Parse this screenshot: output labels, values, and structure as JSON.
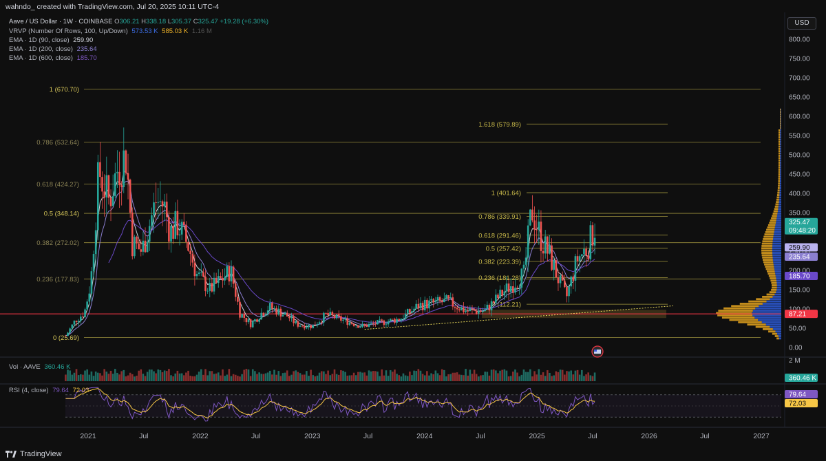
{
  "header": {
    "credit": "wahndo_ created with TradingView.com, Jul 20, 2025 10:11 UTC-4"
  },
  "legend": {
    "symbol": "Aave / US Dollar · 1W · COINBASE",
    "ohlc": [
      {
        "k": "O",
        "v": "306.21"
      },
      {
        "k": "H",
        "v": "338.18"
      },
      {
        "k": "L",
        "v": "305.37"
      },
      {
        "k": "C",
        "v": "325.47"
      }
    ],
    "change": "+19.28 (+6.30%)",
    "vrvp_label": "VRVP (Number Of Rows, 100, Up/Down)",
    "vrvp_up": "573.53 K",
    "vrvp_down": "585.03 K",
    "vrvp_total": "1.16 M",
    "ema90_label": "EMA · 1D (90, close)",
    "ema90_value": "259.90",
    "ema200_label": "EMA · 1D (200, close)",
    "ema200_value": "235.64",
    "ema600_label": "EMA · 1D (600, close)",
    "ema600_value": "185.70"
  },
  "currency_button": "USD",
  "colors": {
    "bg": "#0f0f0f",
    "up": "#26a69a",
    "down": "#ef5350",
    "fib": "#c8b94a",
    "ema90": "#d1d4dc",
    "ema200": "#8b7fd1",
    "ema600": "#6a49c9",
    "hline": "#f23645",
    "vrvp_up": "#2d5bd6",
    "vrvp_down": "#e5a51f",
    "rsi": "#7e57c2",
    "rsi_ma": "#f7c746"
  },
  "chart_data": {
    "type": "candlestick",
    "title": "Aave / US Dollar · 1W · COINBASE",
    "y_ticks": [
      "800.00",
      "750.00",
      "700.00",
      "650.00",
      "600.00",
      "550.00",
      "500.00",
      "450.00",
      "400.00",
      "350.00",
      "300.00",
      "250.00",
      "200.00",
      "150.00",
      "100.00",
      "50.00",
      "0.00"
    ],
    "x_ticks": [
      "2021",
      "Jul",
      "2022",
      "Jul",
      "2023",
      "Jul",
      "2024",
      "Jul",
      "2025",
      "Jul",
      "2026",
      "Jul",
      "2027"
    ],
    "ylim": [
      0,
      820
    ],
    "xlim": [
      "2020-08-17",
      "2027-06-01"
    ],
    "weekly_candles_anchor_closes": [
      [
        "2020-10-20",
        30
      ],
      [
        "2020-11-20",
        70
      ],
      [
        "2020-12-20",
        90
      ],
      [
        "2021-01-10",
        170
      ],
      [
        "2021-02-05",
        460
      ],
      [
        "2021-03-10",
        380
      ],
      [
        "2021-04-05",
        460
      ],
      [
        "2021-05-05",
        500
      ],
      [
        "2021-05-25",
        270
      ],
      [
        "2021-06-25",
        250
      ],
      [
        "2021-08-10",
        380
      ],
      [
        "2021-09-05",
        370
      ],
      [
        "2021-09-25",
        300
      ],
      [
        "2021-10-20",
        320
      ],
      [
        "2021-11-25",
        260
      ],
      [
        "2021-12-20",
        190
      ],
      [
        "2022-02-01",
        150
      ],
      [
        "2022-03-15",
        180
      ],
      [
        "2022-04-10",
        200
      ],
      [
        "2022-05-10",
        90
      ],
      [
        "2022-06-15",
        60
      ],
      [
        "2022-07-20",
        90
      ],
      [
        "2022-08-15",
        105
      ],
      [
        "2022-10-15",
        80
      ],
      [
        "2022-11-10",
        60
      ],
      [
        "2023-01-01",
        55
      ],
      [
        "2023-02-15",
        85
      ],
      [
        "2023-04-15",
        70
      ],
      [
        "2023-06-10",
        55
      ],
      [
        "2023-08-15",
        65
      ],
      [
        "2023-10-15",
        75
      ],
      [
        "2023-12-15",
        110
      ],
      [
        "2024-03-15",
        120
      ],
      [
        "2024-05-15",
        95
      ],
      [
        "2024-07-15",
        95
      ],
      [
        "2024-09-15",
        145
      ],
      [
        "2024-11-20",
        190
      ],
      [
        "2024-12-15",
        360
      ],
      [
        "2025-01-15",
        280
      ],
      [
        "2025-02-10",
        240
      ],
      [
        "2025-03-10",
        180
      ],
      [
        "2025-04-07",
        130
      ],
      [
        "2025-05-12",
        230
      ],
      [
        "2025-06-15",
        260
      ],
      [
        "2025-07-14",
        325.47
      ]
    ],
    "fib_left": [
      {
        "level": "0",
        "price": 25.69,
        "label": "0 (25.69)"
      },
      {
        "level": "0.236",
        "price": 177.83,
        "label": "0.236 (177.83)"
      },
      {
        "level": "0.382",
        "price": 272.02,
        "label": "0.382 (272.02)"
      },
      {
        "level": "0.5",
        "price": 348.14,
        "label": "0.5 (348.14)"
      },
      {
        "level": "0.618",
        "price": 424.27,
        "label": "0.618 (424.27)"
      },
      {
        "level": "0.786",
        "price": 532.64,
        "label": "0.786 (532.64)"
      },
      {
        "level": "1",
        "price": 670.7,
        "label": "1 (670.70)"
      }
    ],
    "fib_right": [
      {
        "level": "0",
        "price": 112.21,
        "label": "0 (112.21)"
      },
      {
        "level": "0.236",
        "price": 181.28,
        "label": "0.236 (181.28)"
      },
      {
        "level": "0.382",
        "price": 223.39,
        "label": "0.382 (223.39)"
      },
      {
        "level": "0.5",
        "price": 257.42,
        "label": "0.5 (257.42)"
      },
      {
        "level": "0.618",
        "price": 291.46,
        "label": "0.618 (291.46)"
      },
      {
        "level": "0.786",
        "price": 339.91,
        "label": "0.786 (339.91)"
      },
      {
        "level": "1",
        "price": 401.64,
        "label": "1 (401.64)"
      },
      {
        "level": "1.618",
        "price": 579.89,
        "label": "1.618 (579.89)"
      }
    ],
    "horizontal_line": {
      "price": 87.21,
      "label": "87.21"
    },
    "support_trendline": [
      [
        "2023-06-20",
        47
      ],
      [
        "2026-03-20",
        108
      ]
    ],
    "price_badges": [
      {
        "value": "325.47",
        "sub": "09:48:20",
        "price": 325.47,
        "color": "#26a69a"
      },
      {
        "value": "259.90",
        "price": 259.9,
        "color": "#b9b2ee"
      },
      {
        "value": "235.64",
        "price": 235.64,
        "color": "#8b7fd1"
      },
      {
        "value": "185.70",
        "price": 185.7,
        "color": "#6a49c9"
      },
      {
        "value": "87.21",
        "price": 87.21,
        "color": "#f23645"
      }
    ],
    "volume": {
      "label": "Vol · AAVE",
      "value": "360.46 K",
      "axis_tick": "2 M"
    },
    "rsi": {
      "label": "RSI (4, close)",
      "value": "79.64",
      "ma_value": "72.03",
      "upper_band": 80,
      "lower_band": 20
    }
  }
}
